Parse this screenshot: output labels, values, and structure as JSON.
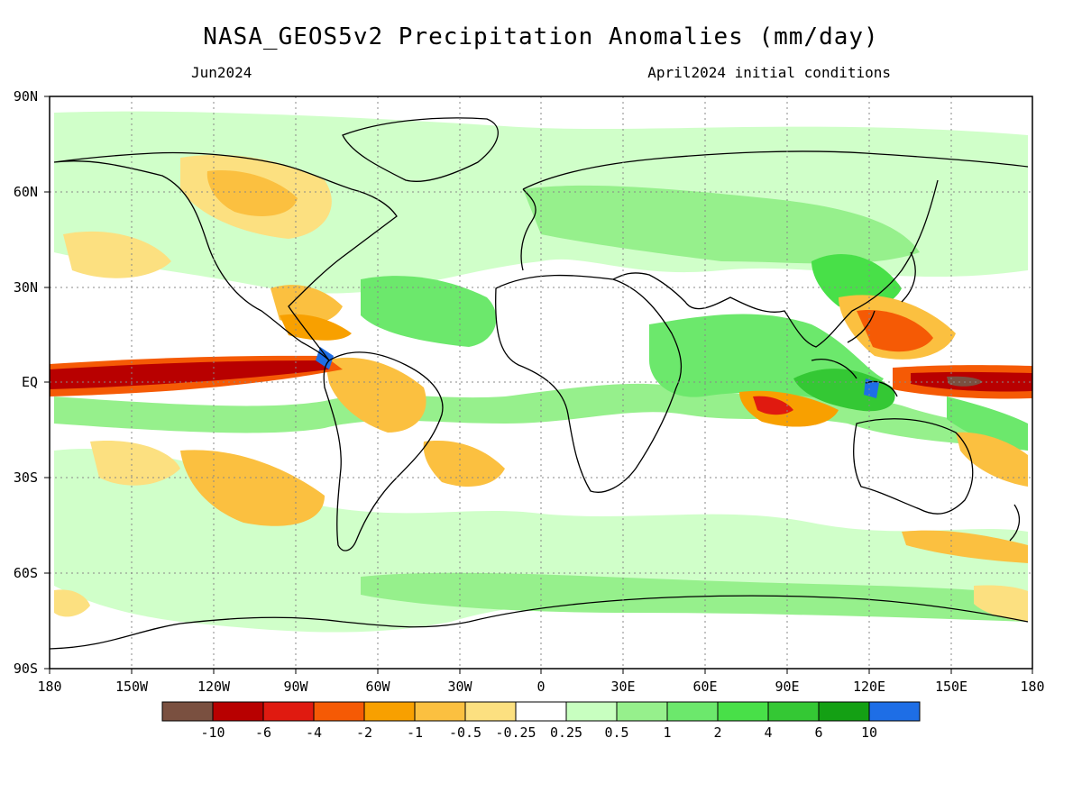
{
  "title": "NASA_GEOS5v2 Precipitation Anomalies (mm/day)",
  "valid_period": "Jun2024",
  "initial_conditions": "April2024 initial conditions",
  "lat_labels": [
    "90N",
    "60N",
    "30N",
    "EQ",
    "30S",
    "60S",
    "90S"
  ],
  "lon_labels": [
    "180",
    "150W",
    "120W",
    "90W",
    "60W",
    "30W",
    "0",
    "30E",
    "60E",
    "90E",
    "120E",
    "150E",
    "180"
  ],
  "colorbar": {
    "colors": [
      "#7a5040",
      "#b80000",
      "#e01a10",
      "#f55a05",
      "#f8a000",
      "#fbc040",
      "#fce080",
      "#ffffff",
      "#c8ffc0",
      "#96f08c",
      "#6ce86c",
      "#48e048",
      "#34c834",
      "#14a014",
      "#1e6ee6"
    ],
    "labels": [
      "-10",
      "-6",
      "-4",
      "-2",
      "-1",
      "-0.5",
      "-0.25",
      "0.25",
      "0.5",
      "1",
      "2",
      "4",
      "6",
      "10"
    ]
  },
  "coastline_color": "#000000"
}
